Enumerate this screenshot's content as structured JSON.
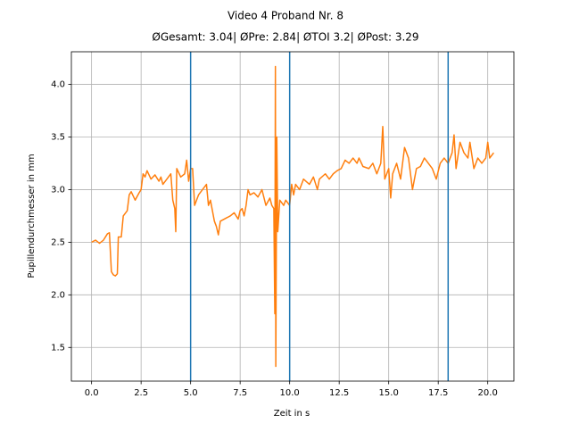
{
  "chart_data": {
    "type": "line",
    "title": "Video 4 Proband Nr. 8",
    "subtitle": "ØGesamt: 3.04| ØPre: 2.84| ØTOI 3.2| ØPost: 3.29",
    "xlabel": "Zeit in s",
    "ylabel": "Pupillendurchmesser in mm",
    "x": [
      0,
      0.2,
      0.4,
      0.6,
      0.8,
      0.9,
      1.0,
      1.1,
      1.2,
      1.3,
      1.35,
      1.5,
      1.6,
      1.8,
      1.9,
      2.0,
      2.2,
      2.4,
      2.5,
      2.6,
      2.7,
      2.8,
      3.0,
      3.2,
      3.4,
      3.5,
      3.6,
      3.8,
      4.0,
      4.1,
      4.2,
      4.25,
      4.3,
      4.5,
      4.7,
      4.8,
      4.9,
      5.0,
      5.1,
      5.2,
      5.4,
      5.6,
      5.8,
      5.9,
      6.0,
      6.2,
      6.3,
      6.4,
      6.5,
      6.7,
      7.0,
      7.2,
      7.4,
      7.5,
      7.6,
      7.7,
      7.8,
      7.9,
      8.0,
      8.2,
      8.4,
      8.6,
      8.8,
      9.0,
      9.1,
      9.2,
      9.25,
      9.28,
      9.3,
      9.35,
      9.4,
      9.5,
      9.7,
      9.8,
      10.0,
      10.1,
      10.2,
      10.3,
      10.5,
      10.7,
      11.0,
      11.2,
      11.4,
      11.5,
      11.8,
      12.0,
      12.2,
      12.4,
      12.6,
      12.8,
      13.0,
      13.2,
      13.4,
      13.5,
      13.7,
      14.0,
      14.2,
      14.4,
      14.6,
      14.7,
      14.8,
      15.0,
      15.1,
      15.2,
      15.4,
      15.6,
      15.8,
      16.0,
      16.2,
      16.4,
      16.6,
      16.8,
      17.0,
      17.2,
      17.4,
      17.6,
      17.8,
      18.0,
      18.2,
      18.3,
      18.4,
      18.6,
      18.8,
      19.0,
      19.1,
      19.3,
      19.5,
      19.7,
      19.9,
      20.0,
      20.1,
      20.3
    ],
    "series": [
      {
        "color": "#ff7f0e",
        "values": [
          2.5,
          2.52,
          2.49,
          2.52,
          2.58,
          2.59,
          2.22,
          2.19,
          2.18,
          2.2,
          2.55,
          2.55,
          2.75,
          2.8,
          2.95,
          2.98,
          2.9,
          2.97,
          3.0,
          3.15,
          3.12,
          3.18,
          3.1,
          3.14,
          3.08,
          3.12,
          3.05,
          3.1,
          3.15,
          2.9,
          2.82,
          2.6,
          3.2,
          3.12,
          3.15,
          3.28,
          3.08,
          3.2,
          3.2,
          2.85,
          2.95,
          3.0,
          3.05,
          2.85,
          2.9,
          2.7,
          2.65,
          2.57,
          2.7,
          2.72,
          2.75,
          2.78,
          2.72,
          2.8,
          2.82,
          2.75,
          2.85,
          3.0,
          2.95,
          2.97,
          2.93,
          3.0,
          2.85,
          2.92,
          2.85,
          2.82,
          1.82,
          4.17,
          1.32,
          3.5,
          2.6,
          2.9,
          2.85,
          2.9,
          2.85,
          3.05,
          2.95,
          3.05,
          3.0,
          3.1,
          3.05,
          3.12,
          3.0,
          3.1,
          3.15,
          3.1,
          3.15,
          3.18,
          3.2,
          3.28,
          3.25,
          3.3,
          3.25,
          3.3,
          3.22,
          3.2,
          3.25,
          3.15,
          3.25,
          3.6,
          3.1,
          3.2,
          2.92,
          3.15,
          3.25,
          3.1,
          3.4,
          3.3,
          3.0,
          3.2,
          3.22,
          3.3,
          3.25,
          3.2,
          3.1,
          3.25,
          3.3,
          3.25,
          3.35,
          3.52,
          3.2,
          3.45,
          3.35,
          3.3,
          3.45,
          3.2,
          3.3,
          3.25,
          3.3,
          3.45,
          3.3,
          3.35
        ]
      }
    ],
    "vlines": {
      "values": [
        5,
        10,
        18
      ],
      "color": "#1f77b4"
    },
    "xlim": [
      -1.02,
      21.32
    ],
    "ylim": [
      1.18,
      4.31
    ],
    "xticks": [
      {
        "value": 0,
        "label": "0.0"
      },
      2.5,
      {
        "value": 5,
        "label": "5.0"
      },
      7.5,
      {
        "value": 10,
        "label": "10.0"
      },
      12.5,
      {
        "value": 15,
        "label": "15.0"
      },
      17.5,
      {
        "value": 20,
        "label": "20.0"
      }
    ],
    "yticks": [
      1.5,
      {
        "value": 2,
        "label": "2.0"
      },
      2.5,
      {
        "value": 3,
        "label": "3.0"
      },
      3.5,
      {
        "value": 4,
        "label": "4.0"
      }
    ],
    "grid": true
  }
}
